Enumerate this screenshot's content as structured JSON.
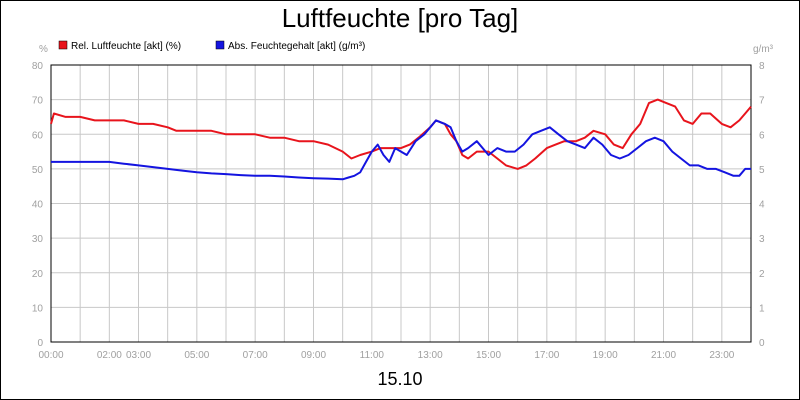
{
  "chart_data": {
    "type": "line",
    "title": "Luftfeuchte [pro Tag]",
    "date_label": "15.10",
    "left_axis": {
      "unit": "%",
      "ylim": [
        0,
        80
      ],
      "ticks": [
        "0",
        "10",
        "20",
        "30",
        "40",
        "50",
        "60",
        "70",
        "80"
      ]
    },
    "right_axis": {
      "unit": "g/m³",
      "ylim": [
        0,
        8
      ],
      "ticks": [
        "0",
        "1",
        "2",
        "3",
        "4",
        "5",
        "6",
        "7",
        "8"
      ]
    },
    "x_axis": {
      "range_hours": [
        0,
        24
      ],
      "ticks": [
        {
          "hour": 0,
          "label": "00:00"
        },
        {
          "hour": 2,
          "label": "02:00"
        },
        {
          "hour": 3,
          "label": "03:00"
        },
        {
          "hour": 5,
          "label": "05:00"
        },
        {
          "hour": 7,
          "label": "07:00"
        },
        {
          "hour": 9,
          "label": "09:00"
        },
        {
          "hour": 11,
          "label": "11:00"
        },
        {
          "hour": 13,
          "label": "13:00"
        },
        {
          "hour": 15,
          "label": "15:00"
        },
        {
          "hour": 17,
          "label": "17:00"
        },
        {
          "hour": 19,
          "label": "19:00"
        },
        {
          "hour": 21,
          "label": "21:00"
        },
        {
          "hour": 23,
          "label": "23:00"
        }
      ]
    },
    "grid": true,
    "legend_position": "top-left",
    "series": [
      {
        "name": "Rel. Luftfeuchte [akt] (%)",
        "color": "#e8141c",
        "axis": "left",
        "hours": [
          0,
          0.1,
          0.5,
          1,
          1.5,
          2,
          2.5,
          3,
          3.5,
          4,
          4.3,
          5,
          5.5,
          6,
          6.5,
          7,
          7.5,
          8,
          8.5,
          9,
          9.5,
          10,
          10.3,
          10.6,
          11,
          11.3,
          11.6,
          12,
          12.3,
          12.6,
          13,
          13.2,
          13.5,
          13.7,
          13.9,
          14.1,
          14.3,
          14.6,
          15,
          15.3,
          15.6,
          16,
          16.3,
          16.6,
          17,
          17.3,
          17.6,
          18,
          18.3,
          18.6,
          19,
          19.3,
          19.6,
          19.9,
          20.2,
          20.5,
          20.8,
          21.1,
          21.4,
          21.7,
          22,
          22.3,
          22.6,
          23,
          23.3,
          23.6,
          23.8,
          24
        ],
        "values": [
          63,
          66,
          65,
          65,
          64,
          64,
          64,
          63,
          63,
          62,
          61,
          61,
          61,
          60,
          60,
          60,
          59,
          59,
          58,
          58,
          57,
          55,
          53,
          54,
          55,
          56,
          56,
          56,
          57,
          59,
          62,
          64,
          63,
          60,
          58,
          54,
          53,
          55,
          55,
          53,
          51,
          50,
          51,
          53,
          56,
          57,
          58,
          58,
          59,
          61,
          60,
          57,
          56,
          60,
          63,
          69,
          70,
          69,
          68,
          64,
          63,
          66,
          66,
          63,
          62,
          64,
          66,
          68
        ]
      },
      {
        "name": "Abs. Feuchtegehalt [akt] (g/m³)",
        "color": "#1414e0",
        "axis": "right",
        "hours": [
          0,
          0.5,
          1,
          1.5,
          2,
          2.5,
          3,
          3.5,
          4,
          4.5,
          5,
          5.5,
          6,
          6.5,
          7,
          7.5,
          8,
          8.5,
          9,
          9.5,
          10,
          10.2,
          10.4,
          10.6,
          10.8,
          11,
          11.2,
          11.4,
          11.6,
          11.8,
          12,
          12.2,
          12.5,
          12.8,
          13,
          13.2,
          13.5,
          13.7,
          13.9,
          14.1,
          14.3,
          14.6,
          15,
          15.3,
          15.6,
          15.9,
          16.2,
          16.5,
          16.8,
          17.1,
          17.4,
          17.7,
          18,
          18.3,
          18.6,
          18.9,
          19.2,
          19.5,
          19.8,
          20.1,
          20.4,
          20.7,
          21,
          21.3,
          21.6,
          21.9,
          22.2,
          22.5,
          22.8,
          23.1,
          23.4,
          23.6,
          23.8,
          24
        ],
        "values": [
          5.2,
          5.2,
          5.2,
          5.2,
          5.2,
          5.15,
          5.1,
          5.05,
          5.0,
          4.95,
          4.9,
          4.87,
          4.85,
          4.82,
          4.8,
          4.8,
          4.78,
          4.75,
          4.73,
          4.72,
          4.7,
          4.75,
          4.8,
          4.9,
          5.2,
          5.5,
          5.7,
          5.4,
          5.2,
          5.6,
          5.5,
          5.4,
          5.8,
          6.0,
          6.2,
          6.4,
          6.3,
          6.2,
          5.8,
          5.5,
          5.6,
          5.8,
          5.4,
          5.6,
          5.5,
          5.5,
          5.7,
          6.0,
          6.1,
          6.2,
          6.0,
          5.8,
          5.7,
          5.6,
          5.9,
          5.7,
          5.4,
          5.3,
          5.4,
          5.6,
          5.8,
          5.9,
          5.8,
          5.5,
          5.3,
          5.1,
          5.1,
          5.0,
          5.0,
          4.9,
          4.8,
          4.8,
          5.0,
          5.0
        ]
      }
    ]
  }
}
